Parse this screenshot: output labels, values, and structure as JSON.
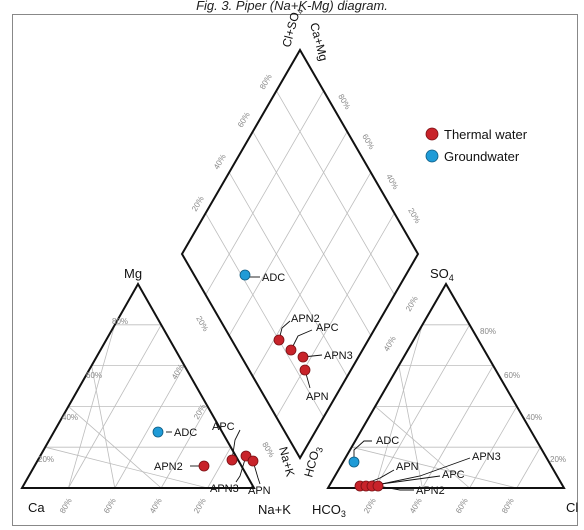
{
  "caption": "Fig. 3. Piper (Na+K-Mg) diagram.",
  "vertex_labels": {
    "left_ca": "Ca",
    "left_nak": "Na+K",
    "left_mg": "Mg",
    "right_hco3": "HCO3",
    "right_cl": "Cl",
    "right_so4": "SO4",
    "top_clso4": "Cl+SO4",
    "top_camg": "Ca+Mg",
    "mid_nak": "Na+K",
    "mid_hco3": "HCO3"
  },
  "tick_labels": [
    "20%",
    "40%",
    "60%",
    "80%"
  ],
  "legend": {
    "items": [
      {
        "label": "Thermal water",
        "color": "#c8232a"
      },
      {
        "label": "Groundwater",
        "color": "#1f9bd7"
      }
    ]
  },
  "colors": {
    "thermal": "#c8232a",
    "ground": "#1f9bd7",
    "outline": "#111111",
    "grid": "#bdbdbd"
  },
  "samples": [
    {
      "name": "APN2",
      "group": "Thermal water"
    },
    {
      "name": "APC",
      "group": "Thermal water"
    },
    {
      "name": "APN3",
      "group": "Thermal water"
    },
    {
      "name": "APN",
      "group": "Thermal water"
    },
    {
      "name": "ADC",
      "group": "Groundwater"
    }
  ]
}
